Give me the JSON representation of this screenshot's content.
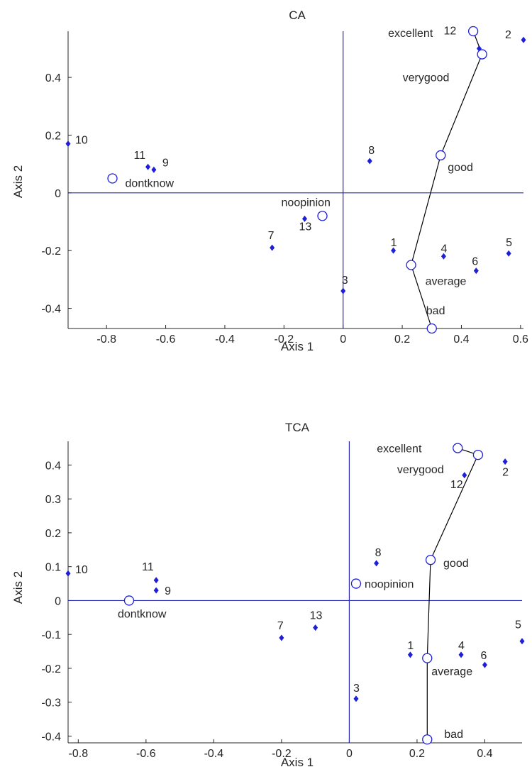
{
  "chart_data": [
    {
      "type": "scatter",
      "title": "CA",
      "xlabel": "Axis 1",
      "ylabel": "Axis 2",
      "xlim": [
        -0.93,
        0.61
      ],
      "ylim": [
        -0.47,
        0.56
      ],
      "xticks": [
        -0.8,
        -0.6,
        -0.4,
        -0.2,
        0,
        0.2,
        0.4,
        0.6
      ],
      "xtick_labels": [
        "-0.8",
        "-0.6",
        "-0.4",
        "-0.2",
        "0",
        "0.2",
        "0.4",
        "0.6"
      ],
      "yticks": [
        -0.4,
        -0.2,
        0,
        0.2,
        0.4
      ],
      "ytick_labels": [
        "-0.4",
        "-0.2",
        "0",
        "0.2",
        "0.4"
      ],
      "colors": {
        "row_points": "#1f1fd8",
        "zero_lines": "#2b2bb0",
        "category_path": "#000000"
      },
      "row_points": [
        {
          "label": "1",
          "x": 0.17,
          "y": -0.2
        },
        {
          "label": "2",
          "x": 0.61,
          "y": 0.53
        },
        {
          "label": "3",
          "x": 0.0,
          "y": -0.34
        },
        {
          "label": "4",
          "x": 0.34,
          "y": -0.22
        },
        {
          "label": "5",
          "x": 0.56,
          "y": -0.21
        },
        {
          "label": "6",
          "x": 0.45,
          "y": -0.27
        },
        {
          "label": "7",
          "x": -0.24,
          "y": -0.19
        },
        {
          "label": "8",
          "x": 0.09,
          "y": 0.11
        },
        {
          "label": "9",
          "x": -0.64,
          "y": 0.08
        },
        {
          "label": "10",
          "x": -0.93,
          "y": 0.17
        },
        {
          "label": "11",
          "x": -0.66,
          "y": 0.09
        },
        {
          "label": "12",
          "x": 0.46,
          "y": 0.5
        },
        {
          "label": "13",
          "x": -0.13,
          "y": -0.09
        }
      ],
      "category_points": [
        {
          "label": "excellent",
          "x": 0.44,
          "y": 0.56
        },
        {
          "label": "verygood",
          "x": 0.47,
          "y": 0.48
        },
        {
          "label": "good",
          "x": 0.33,
          "y": 0.13
        },
        {
          "label": "average",
          "x": 0.23,
          "y": -0.25
        },
        {
          "label": "bad",
          "x": 0.3,
          "y": -0.47
        },
        {
          "label": "dontknow",
          "x": -0.78,
          "y": 0.05
        },
        {
          "label": "noopinion",
          "x": -0.07,
          "y": -0.08
        }
      ],
      "path_order": [
        "excellent",
        "verygood",
        "good",
        "average",
        "bad"
      ]
    },
    {
      "type": "scatter",
      "title": "TCA",
      "xlabel": "Axis 1",
      "ylabel": "Axis 2",
      "xlim": [
        -0.83,
        0.51
      ],
      "ylim": [
        -0.42,
        0.47
      ],
      "xticks": [
        -0.8,
        -0.6,
        -0.4,
        -0.2,
        0,
        0.2,
        0.4
      ],
      "xtick_labels": [
        "-0.8",
        "-0.6",
        "-0.4",
        "-0.2",
        "0",
        "0.2",
        "0.4"
      ],
      "yticks": [
        -0.4,
        -0.3,
        -0.2,
        -0.1,
        0,
        0.1,
        0.2,
        0.3,
        0.4
      ],
      "ytick_labels": [
        "-0.4",
        "-0.3",
        "-0.2",
        "-0.1",
        "0",
        "0.1",
        "0.2",
        "0.3",
        "0.4"
      ],
      "colors": {
        "row_points": "#1f1fd8",
        "zero_lines": "#2b2bb0",
        "category_path": "#000000"
      },
      "row_points": [
        {
          "label": "1",
          "x": 0.18,
          "y": -0.16
        },
        {
          "label": "2",
          "x": 0.46,
          "y": 0.41
        },
        {
          "label": "3",
          "x": 0.02,
          "y": -0.29
        },
        {
          "label": "4",
          "x": 0.33,
          "y": -0.16
        },
        {
          "label": "5",
          "x": 0.51,
          "y": -0.12
        },
        {
          "label": "6",
          "x": 0.4,
          "y": -0.19
        },
        {
          "label": "7",
          "x": -0.2,
          "y": -0.11
        },
        {
          "label": "8",
          "x": 0.08,
          "y": 0.11
        },
        {
          "label": "9",
          "x": -0.57,
          "y": 0.03
        },
        {
          "label": "10",
          "x": -0.83,
          "y": 0.08
        },
        {
          "label": "11",
          "x": -0.57,
          "y": 0.06
        },
        {
          "label": "12",
          "x": 0.34,
          "y": 0.37
        },
        {
          "label": "13",
          "x": -0.1,
          "y": -0.08
        }
      ],
      "category_points": [
        {
          "label": "excellent",
          "x": 0.32,
          "y": 0.45
        },
        {
          "label": "verygood",
          "x": 0.38,
          "y": 0.43
        },
        {
          "label": "good",
          "x": 0.24,
          "y": 0.12
        },
        {
          "label": "average",
          "x": 0.23,
          "y": -0.17
        },
        {
          "label": "bad",
          "x": 0.23,
          "y": -0.41
        },
        {
          "label": "dontknow",
          "x": -0.65,
          "y": 0.0
        },
        {
          "label": "noopinion",
          "x": 0.02,
          "y": 0.05
        }
      ],
      "path_order": [
        "excellent",
        "verygood",
        "good",
        "average",
        "bad"
      ]
    }
  ]
}
